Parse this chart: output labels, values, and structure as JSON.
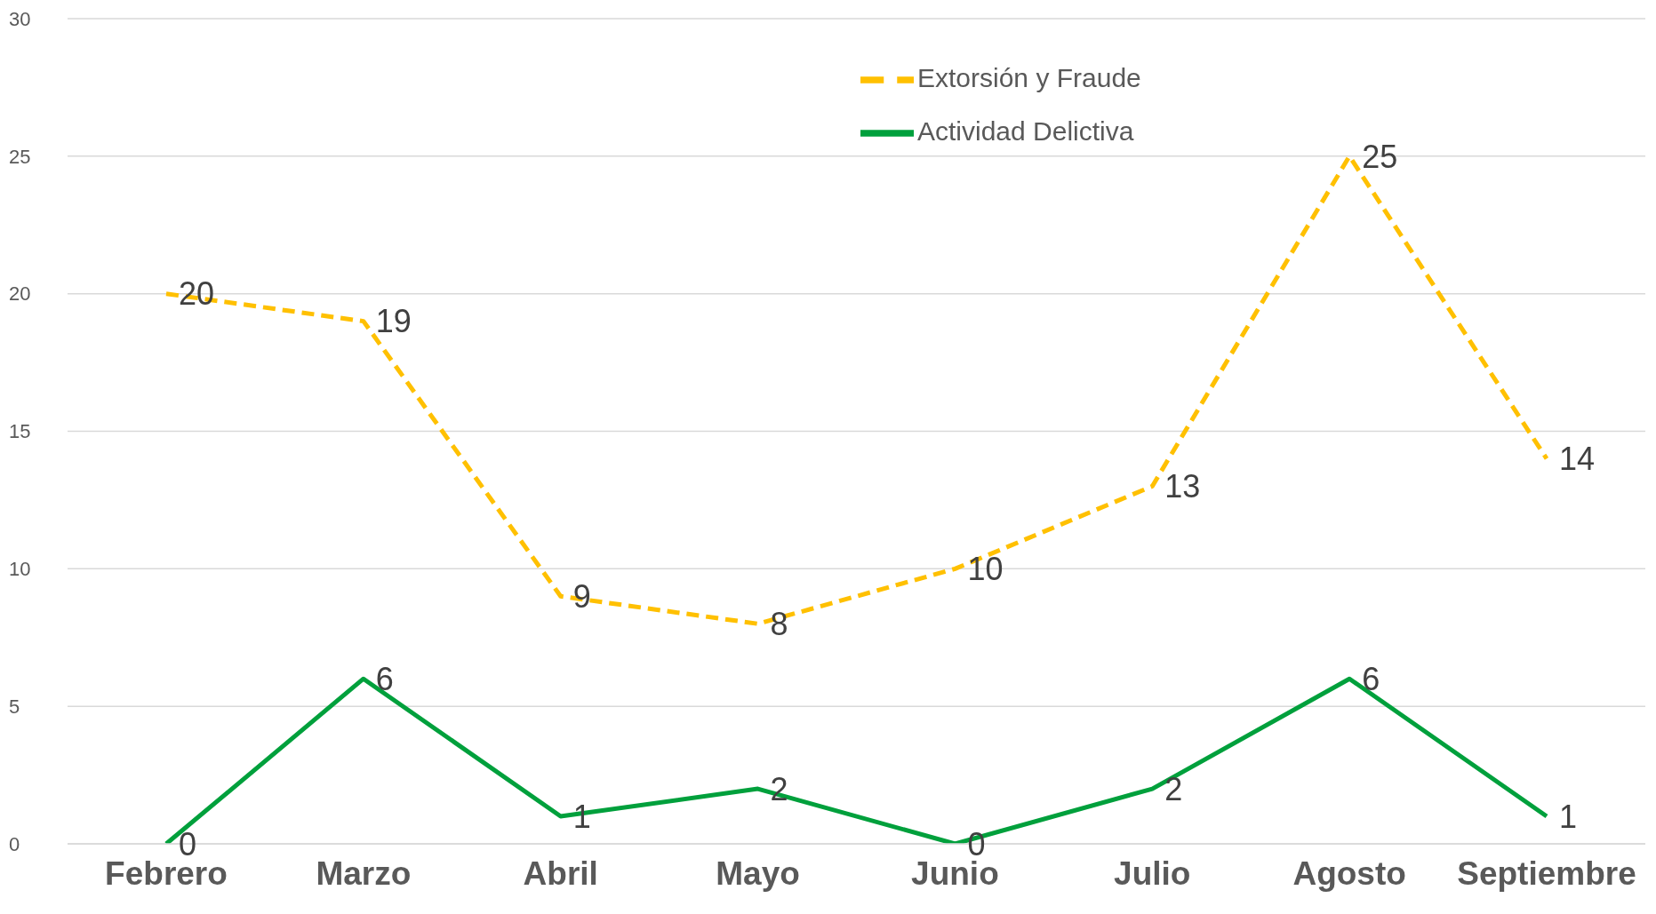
{
  "chart_data": {
    "type": "line",
    "categories": [
      "Febrero",
      "Marzo",
      "Abril",
      "Mayo",
      "Junio",
      "Julio",
      "Agosto",
      "Septiembre"
    ],
    "series": [
      {
        "name": "Extorsión y Fraude",
        "color": "#ffc000",
        "line_style": "dashed",
        "values": [
          20,
          19,
          9,
          8,
          10,
          13,
          25,
          14
        ]
      },
      {
        "name": "Actividad Delictiva",
        "color": "#00a03c",
        "line_style": "solid",
        "values": [
          0,
          6,
          1,
          2,
          0,
          2,
          6,
          1
        ]
      }
    ],
    "ylim": [
      0,
      30
    ],
    "yticks": [
      0,
      5,
      10,
      15,
      20,
      25,
      30
    ],
    "grid": "y",
    "legend": "top",
    "marker": "none",
    "data_labels": true
  }
}
